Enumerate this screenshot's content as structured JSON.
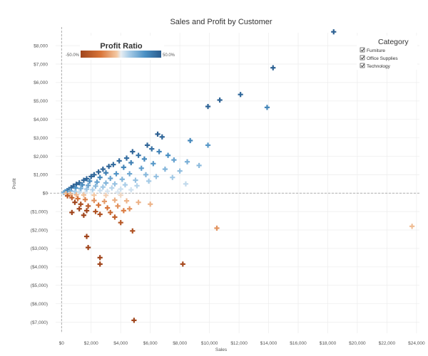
{
  "chart_data": {
    "type": "scatter",
    "title": "Sales and Profit by Customer",
    "xlabel": "Sales",
    "ylabel": "Profit",
    "xlim": [
      -400,
      24200
    ],
    "ylim": [
      -7600,
      8700
    ],
    "x_ticks": [
      0,
      2000,
      4000,
      6000,
      8000,
      10000,
      12000,
      14000,
      16000,
      18000,
      20000,
      22000,
      24000
    ],
    "x_tick_labels": [
      "$0",
      "$2,000",
      "$4,000",
      "$6,000",
      "$8,000",
      "$10,000",
      "$12,000",
      "$14,000",
      "$16,000",
      "$18,000",
      "$20,000",
      "$22,000",
      "$24,000"
    ],
    "y_ticks": [
      8000,
      7000,
      6000,
      5000,
      4000,
      3000,
      2000,
      1000,
      0,
      -1000,
      -2000,
      -3000,
      -4000,
      -5000,
      -6000,
      -7000
    ],
    "y_tick_labels": [
      "$8,000",
      "$7,000",
      "$6,000",
      "$5,000",
      "$4,000",
      "$3,000",
      "$2,000",
      "$1,000",
      "$0",
      "($1,000)",
      "($2,000)",
      "($3,000)",
      "($4,000)",
      "($5,000)",
      "($6,000)",
      "($7,000)"
    ],
    "grid": true,
    "marker": "plus",
    "color_encoding": {
      "title": "Profit Ratio",
      "min_label": "-50.0%",
      "max_label": "50.0%",
      "min": -0.5,
      "max": 0.5,
      "colors": [
        "#a0451c",
        "#d9763a",
        "#f4c9a4",
        "#e8eef3",
        "#a9cde8",
        "#4a90c4",
        "#2a5c8e"
      ]
    },
    "category_legend": {
      "title": "Category",
      "items": [
        {
          "label": "Furniture",
          "checked": true
        },
        {
          "label": "Office Supplies",
          "checked": true
        },
        {
          "label": "Technology",
          "checked": true
        }
      ]
    },
    "points": [
      {
        "x": 18400,
        "y": 8750,
        "r": 0.48
      },
      {
        "x": 14300,
        "y": 6800,
        "r": 0.48
      },
      {
        "x": 12100,
        "y": 5350,
        "r": 0.45
      },
      {
        "x": 10700,
        "y": 5050,
        "r": 0.47
      },
      {
        "x": 9900,
        "y": 4700,
        "r": 0.47
      },
      {
        "x": 13900,
        "y": 4650,
        "r": 0.34
      },
      {
        "x": 6500,
        "y": 3200,
        "r": 0.49
      },
      {
        "x": 6800,
        "y": 3050,
        "r": 0.46
      },
      {
        "x": 8700,
        "y": 2850,
        "r": 0.33
      },
      {
        "x": 9900,
        "y": 2600,
        "r": 0.27
      },
      {
        "x": 5800,
        "y": 2600,
        "r": 0.46
      },
      {
        "x": 6100,
        "y": 2400,
        "r": 0.42
      },
      {
        "x": 4800,
        "y": 2250,
        "r": 0.47
      },
      {
        "x": 6600,
        "y": 2250,
        "r": 0.35
      },
      {
        "x": 5200,
        "y": 2050,
        "r": 0.4
      },
      {
        "x": 7200,
        "y": 2050,
        "r": 0.3
      },
      {
        "x": 4400,
        "y": 1900,
        "r": 0.43
      },
      {
        "x": 5600,
        "y": 1850,
        "r": 0.33
      },
      {
        "x": 7600,
        "y": 1800,
        "r": 0.24
      },
      {
        "x": 3900,
        "y": 1750,
        "r": 0.45
      },
      {
        "x": 4700,
        "y": 1650,
        "r": 0.36
      },
      {
        "x": 6200,
        "y": 1600,
        "r": 0.27
      },
      {
        "x": 8500,
        "y": 1700,
        "r": 0.2
      },
      {
        "x": 9300,
        "y": 1500,
        "r": 0.16
      },
      {
        "x": 3500,
        "y": 1550,
        "r": 0.44
      },
      {
        "x": 3200,
        "y": 1450,
        "r": 0.46
      },
      {
        "x": 4200,
        "y": 1400,
        "r": 0.34
      },
      {
        "x": 5400,
        "y": 1350,
        "r": 0.25
      },
      {
        "x": 7000,
        "y": 1300,
        "r": 0.18
      },
      {
        "x": 8000,
        "y": 1200,
        "r": 0.15
      },
      {
        "x": 2800,
        "y": 1300,
        "r": 0.46
      },
      {
        "x": 2500,
        "y": 1150,
        "r": 0.47
      },
      {
        "x": 3000,
        "y": 1100,
        "r": 0.37
      },
      {
        "x": 3700,
        "y": 1050,
        "r": 0.28
      },
      {
        "x": 4600,
        "y": 1050,
        "r": 0.22
      },
      {
        "x": 5700,
        "y": 1000,
        "r": 0.17
      },
      {
        "x": 6400,
        "y": 900,
        "r": 0.14
      },
      {
        "x": 7500,
        "y": 850,
        "r": 0.11
      },
      {
        "x": 2200,
        "y": 1000,
        "r": 0.45
      },
      {
        "x": 2000,
        "y": 900,
        "r": 0.46
      },
      {
        "x": 2600,
        "y": 850,
        "r": 0.33
      },
      {
        "x": 3300,
        "y": 800,
        "r": 0.24
      },
      {
        "x": 4100,
        "y": 750,
        "r": 0.18
      },
      {
        "x": 5000,
        "y": 700,
        "r": 0.14
      },
      {
        "x": 5900,
        "y": 650,
        "r": 0.11
      },
      {
        "x": 8400,
        "y": 500,
        "r": 0.06
      },
      {
        "x": 1700,
        "y": 780,
        "r": 0.46
      },
      {
        "x": 1500,
        "y": 700,
        "r": 0.45
      },
      {
        "x": 1900,
        "y": 650,
        "r": 0.33
      },
      {
        "x": 2400,
        "y": 600,
        "r": 0.25
      },
      {
        "x": 3000,
        "y": 550,
        "r": 0.18
      },
      {
        "x": 3600,
        "y": 500,
        "r": 0.14
      },
      {
        "x": 4300,
        "y": 450,
        "r": 0.1
      },
      {
        "x": 5100,
        "y": 400,
        "r": 0.08
      },
      {
        "x": 1200,
        "y": 560,
        "r": 0.46
      },
      {
        "x": 1000,
        "y": 480,
        "r": 0.47
      },
      {
        "x": 1400,
        "y": 450,
        "r": 0.33
      },
      {
        "x": 1800,
        "y": 420,
        "r": 0.24
      },
      {
        "x": 2300,
        "y": 380,
        "r": 0.17
      },
      {
        "x": 2800,
        "y": 330,
        "r": 0.12
      },
      {
        "x": 3400,
        "y": 280,
        "r": 0.08
      },
      {
        "x": 4000,
        "y": 220,
        "r": 0.05
      },
      {
        "x": 4700,
        "y": 180,
        "r": 0.04
      },
      {
        "x": 800,
        "y": 380,
        "r": 0.47
      },
      {
        "x": 650,
        "y": 300,
        "r": 0.46
      },
      {
        "x": 950,
        "y": 280,
        "r": 0.3
      },
      {
        "x": 1300,
        "y": 250,
        "r": 0.2
      },
      {
        "x": 1700,
        "y": 220,
        "r": 0.13
      },
      {
        "x": 2100,
        "y": 180,
        "r": 0.09
      },
      {
        "x": 2600,
        "y": 140,
        "r": 0.05
      },
      {
        "x": 3100,
        "y": 100,
        "r": 0.03
      },
      {
        "x": 3800,
        "y": 60,
        "r": 0.02
      },
      {
        "x": 500,
        "y": 200,
        "r": 0.4
      },
      {
        "x": 380,
        "y": 140,
        "r": 0.37
      },
      {
        "x": 250,
        "y": 80,
        "r": 0.32
      },
      {
        "x": 600,
        "y": 120,
        "r": 0.2
      },
      {
        "x": 900,
        "y": 90,
        "r": 0.1
      },
      {
        "x": 1200,
        "y": 60,
        "r": 0.05
      },
      {
        "x": 1600,
        "y": 40,
        "r": 0.02
      },
      {
        "x": 2000,
        "y": 20,
        "r": 0.01
      },
      {
        "x": 150,
        "y": 30,
        "r": 0.2
      },
      {
        "x": 300,
        "y": -20,
        "r": -0.07
      },
      {
        "x": 600,
        "y": -60,
        "r": -0.1
      },
      {
        "x": 1000,
        "y": -90,
        "r": -0.09
      },
      {
        "x": 1500,
        "y": -100,
        "r": -0.07
      },
      {
        "x": 2200,
        "y": -110,
        "r": -0.05
      },
      {
        "x": 3000,
        "y": -120,
        "r": -0.04
      },
      {
        "x": 4000,
        "y": -110,
        "r": -0.03
      },
      {
        "x": 400,
        "y": -150,
        "r": -0.37
      },
      {
        "x": 700,
        "y": -250,
        "r": -0.36
      },
      {
        "x": 1100,
        "y": -300,
        "r": -0.27
      },
      {
        "x": 1600,
        "y": -350,
        "r": -0.22
      },
      {
        "x": 2200,
        "y": -400,
        "r": -0.18
      },
      {
        "x": 2900,
        "y": -450,
        "r": -0.16
      },
      {
        "x": 3600,
        "y": -380,
        "r": -0.11
      },
      {
        "x": 4400,
        "y": -420,
        "r": -0.1
      },
      {
        "x": 5200,
        "y": -500,
        "r": -0.1
      },
      {
        "x": 6000,
        "y": -600,
        "r": -0.1
      },
      {
        "x": 900,
        "y": -500,
        "r": -0.5
      },
      {
        "x": 1300,
        "y": -600,
        "r": -0.46
      },
      {
        "x": 1800,
        "y": -700,
        "r": -0.39
      },
      {
        "x": 2500,
        "y": -650,
        "r": -0.26
      },
      {
        "x": 3100,
        "y": -800,
        "r": -0.26
      },
      {
        "x": 3800,
        "y": -700,
        "r": -0.18
      },
      {
        "x": 4600,
        "y": -850,
        "r": -0.18
      },
      {
        "x": 1200,
        "y": -850,
        "r": -0.5
      },
      {
        "x": 1700,
        "y": -950,
        "r": -0.5
      },
      {
        "x": 2300,
        "y": -1000,
        "r": -0.43
      },
      {
        "x": 3300,
        "y": -1050,
        "r": -0.32
      },
      {
        "x": 4200,
        "y": -950,
        "r": -0.23
      },
      {
        "x": 700,
        "y": -1050,
        "r": -0.5
      },
      {
        "x": 1500,
        "y": -1200,
        "r": -0.5
      },
      {
        "x": 2600,
        "y": -1150,
        "r": -0.44
      },
      {
        "x": 3600,
        "y": -1300,
        "r": -0.36
      },
      {
        "x": 4000,
        "y": -1600,
        "r": -0.4
      },
      {
        "x": 4800,
        "y": -2050,
        "r": -0.43
      },
      {
        "x": 1700,
        "y": -2350,
        "r": -0.5
      },
      {
        "x": 1800,
        "y": -2950,
        "r": -0.5
      },
      {
        "x": 2600,
        "y": -3500,
        "r": -0.5
      },
      {
        "x": 2600,
        "y": -3850,
        "r": -0.5
      },
      {
        "x": 8200,
        "y": -3850,
        "r": -0.47
      },
      {
        "x": 4900,
        "y": -6900,
        "r": -0.5
      },
      {
        "x": 10500,
        "y": -1900,
        "r": -0.18
      },
      {
        "x": 23700,
        "y": -1800,
        "r": -0.08
      }
    ]
  }
}
